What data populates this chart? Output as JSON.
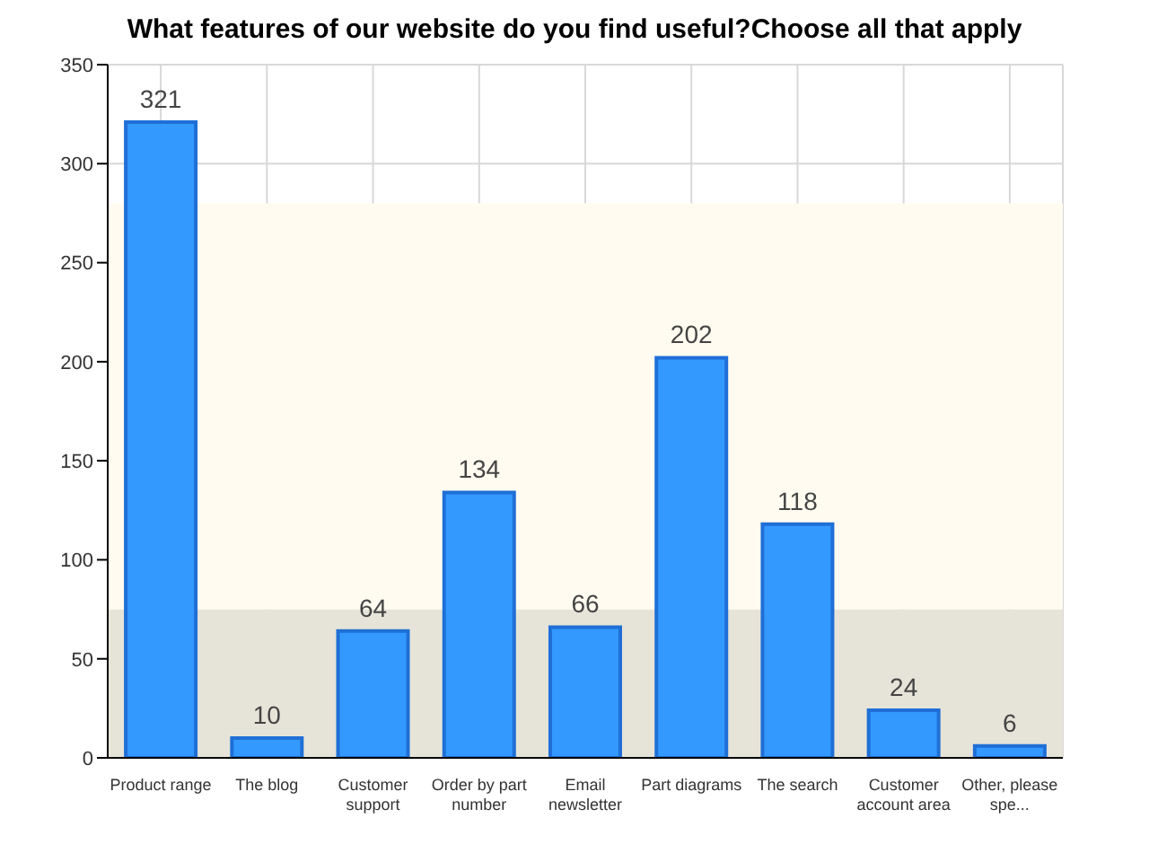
{
  "chart_data": {
    "type": "bar",
    "title": "What features of our website do you find useful?Choose all that apply",
    "categories": [
      "Product range",
      "The blog",
      "Customer support",
      "Order by part number",
      "Email newsletter",
      "Part diagrams",
      "The search",
      "Customer account area",
      "Other, please spe..."
    ],
    "values": [
      321,
      10,
      64,
      134,
      66,
      202,
      118,
      24,
      6
    ],
    "color": "#3399ff",
    "ylim": [
      0,
      350
    ],
    "yticks": [
      0,
      50,
      100,
      150,
      200,
      250,
      300,
      350
    ],
    "grid": true,
    "data_labels": true,
    "bands": [
      {
        "axis": "y",
        "from": 0,
        "to": 75,
        "color": "#e6e4d9"
      },
      {
        "axis": "y",
        "from": 75,
        "to": 280,
        "color": "#fffbf0"
      }
    ]
  }
}
